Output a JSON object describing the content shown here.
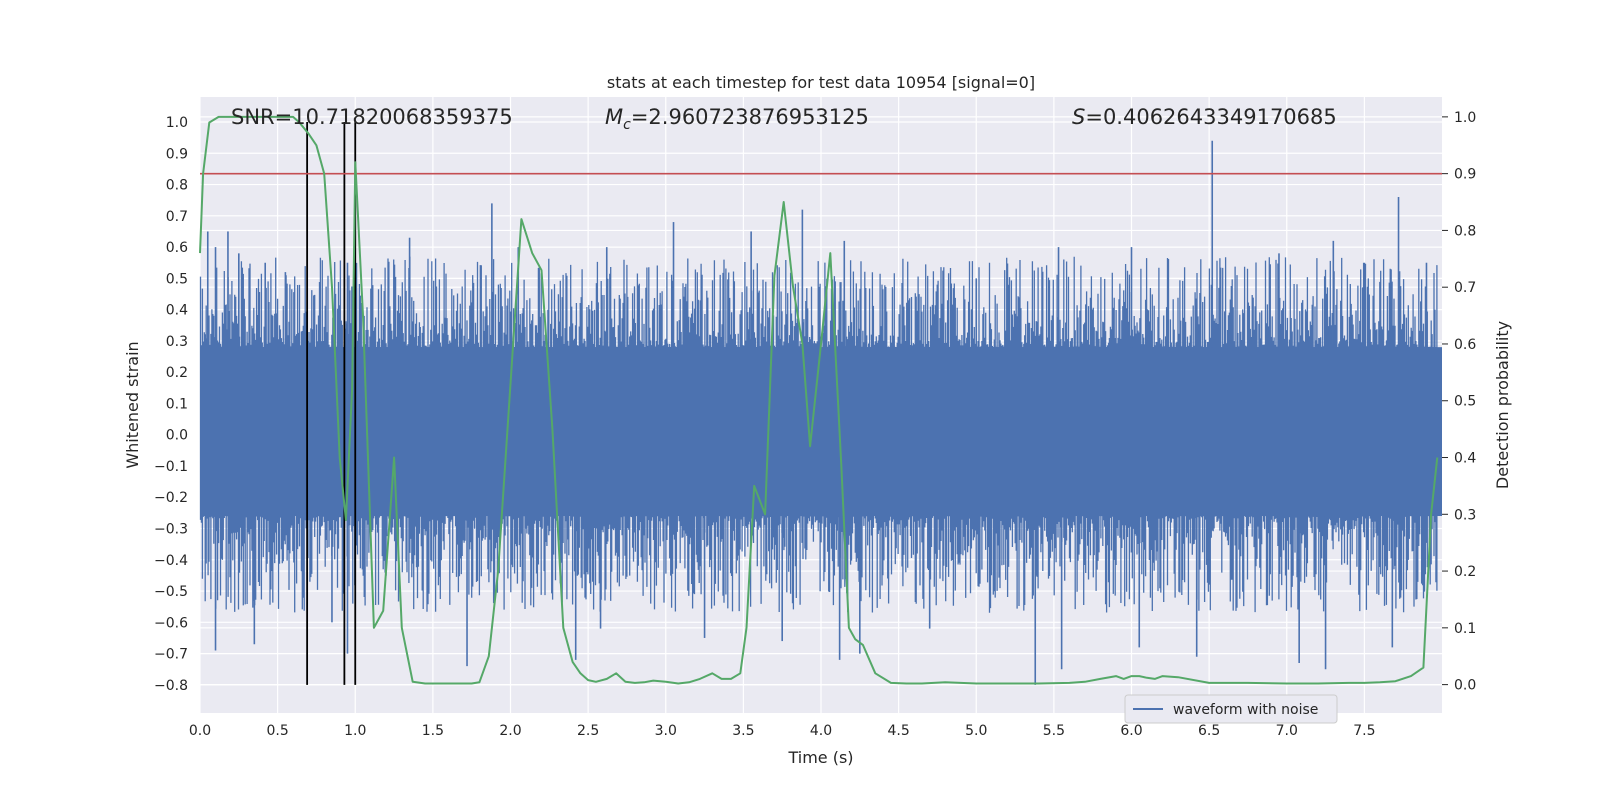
{
  "chart_data": {
    "type": "line",
    "title": "stats at each timestep for test data 10954 [signal=0]",
    "xlabel": "Time (s)",
    "ylabel": "Whitened strain",
    "y2label": "Detection probability",
    "xlim": [
      0.0,
      8.0
    ],
    "ylim": [
      -0.89,
      1.08
    ],
    "y2lim": [
      -0.05,
      1.035
    ],
    "xticks": [
      "0.0",
      "0.5",
      "1.0",
      "1.5",
      "2.0",
      "2.5",
      "3.0",
      "3.5",
      "4.0",
      "4.5",
      "5.0",
      "5.5",
      "6.0",
      "6.5",
      "7.0",
      "7.5"
    ],
    "yticks": [
      "1.0",
      "0.9",
      "0.8",
      "0.7",
      "0.6",
      "0.5",
      "0.4",
      "0.3",
      "0.2",
      "0.1",
      "0.0",
      "−0.1",
      "−0.2",
      "−0.3",
      "−0.4",
      "−0.5",
      "−0.6",
      "−0.7",
      "−0.8"
    ],
    "y2ticks": [
      "1.0",
      "0.9",
      "0.8",
      "0.7",
      "0.6",
      "0.5",
      "0.4",
      "0.3",
      "0.2",
      "0.1",
      "0.0"
    ],
    "grid": true,
    "annotations": {
      "snr": "SNR=10.71820068359375",
      "mc_symbol": "M",
      "mc_sub": "c",
      "mc_value": "=2.960723876953125",
      "s_symbol": "S",
      "s_value": "=0.4062643349170685"
    },
    "legend": {
      "placement": "lower-right",
      "entries": [
        "waveform with noise"
      ]
    },
    "threshold": {
      "axis": "right",
      "value": 0.9,
      "color": "#c44e52"
    },
    "vlines": {
      "x": [
        0.69,
        0.93,
        1.0
      ],
      "ymin": -0.8,
      "ymax": 1.0,
      "color": "#000000"
    },
    "series": [
      {
        "name": "waveform with noise",
        "axis": "left",
        "color": "#4c72b0",
        "band": {
          "core_high": 0.28,
          "core_low": -0.26,
          "typical_peak": 0.45,
          "typical_trough": -0.45
        },
        "spikes_up": [
          [
            0.05,
            0.65
          ],
          [
            0.1,
            0.6
          ],
          [
            0.18,
            0.65
          ],
          [
            0.25,
            0.58
          ],
          [
            0.42,
            0.55
          ],
          [
            0.55,
            0.52
          ],
          [
            0.95,
            0.55
          ],
          [
            1.0,
            0.45
          ],
          [
            1.35,
            0.63
          ],
          [
            1.88,
            0.74
          ],
          [
            2.05,
            0.6
          ],
          [
            2.62,
            0.6
          ],
          [
            3.05,
            0.68
          ],
          [
            3.55,
            0.65
          ],
          [
            3.88,
            0.72
          ],
          [
            4.15,
            0.62
          ],
          [
            5.0,
            0.5
          ],
          [
            5.53,
            0.6
          ],
          [
            6.0,
            0.6
          ],
          [
            6.52,
            0.94
          ],
          [
            6.95,
            0.58
          ],
          [
            7.3,
            0.62
          ],
          [
            7.72,
            0.76
          ],
          [
            7.9,
            0.55
          ]
        ],
        "spikes_down": [
          [
            0.1,
            -0.69
          ],
          [
            0.35,
            -0.67
          ],
          [
            0.85,
            -0.6
          ],
          [
            0.95,
            -0.7
          ],
          [
            1.72,
            -0.74
          ],
          [
            2.42,
            -0.72
          ],
          [
            2.58,
            -0.62
          ],
          [
            3.25,
            -0.65
          ],
          [
            3.75,
            -0.66
          ],
          [
            4.12,
            -0.72
          ],
          [
            4.25,
            -0.7
          ],
          [
            4.7,
            -0.62
          ],
          [
            5.38,
            -0.8
          ],
          [
            5.55,
            -0.75
          ],
          [
            6.05,
            -0.68
          ],
          [
            6.42,
            -0.71
          ],
          [
            7.08,
            -0.73
          ],
          [
            7.25,
            -0.75
          ],
          [
            7.68,
            -0.68
          ]
        ]
      },
      {
        "name": "detection probability",
        "axis": "right",
        "color": "#55a868",
        "x": [
          0.0,
          0.02,
          0.06,
          0.12,
          0.2,
          0.3,
          0.4,
          0.5,
          0.6,
          0.64,
          0.7,
          0.75,
          0.8,
          0.85,
          0.9,
          0.94,
          0.98,
          1.0,
          1.05,
          1.12,
          1.18,
          1.25,
          1.3,
          1.37,
          1.45,
          1.55,
          1.65,
          1.75,
          1.8,
          1.86,
          1.92,
          2.0,
          2.07,
          2.14,
          2.2,
          2.27,
          2.34,
          2.4,
          2.45,
          2.5,
          2.55,
          2.62,
          2.68,
          2.74,
          2.8,
          2.86,
          2.92,
          3.0,
          3.08,
          3.15,
          3.22,
          3.3,
          3.36,
          3.42,
          3.48,
          3.52,
          3.57,
          3.64,
          3.7,
          3.76,
          3.82,
          3.88,
          3.93,
          4.0,
          4.06,
          4.13,
          4.18,
          4.22,
          4.27,
          4.35,
          4.45,
          4.55,
          4.65,
          4.8,
          5.0,
          5.2,
          5.4,
          5.6,
          5.7,
          5.8,
          5.9,
          5.95,
          6.0,
          6.05,
          6.1,
          6.15,
          6.2,
          6.3,
          6.5,
          6.75,
          7.0,
          7.2,
          7.4,
          7.5,
          7.6,
          7.7,
          7.8,
          7.88,
          7.93,
          7.97
        ],
        "y": [
          0.76,
          0.9,
          0.99,
          1.0,
          1.0,
          1.0,
          1.0,
          1.0,
          1.0,
          0.99,
          0.97,
          0.95,
          0.9,
          0.7,
          0.4,
          0.29,
          0.52,
          0.92,
          0.65,
          0.1,
          0.13,
          0.4,
          0.1,
          0.005,
          0.002,
          0.002,
          0.002,
          0.002,
          0.004,
          0.05,
          0.2,
          0.53,
          0.82,
          0.76,
          0.73,
          0.45,
          0.1,
          0.04,
          0.02,
          0.008,
          0.005,
          0.01,
          0.02,
          0.005,
          0.003,
          0.004,
          0.007,
          0.005,
          0.002,
          0.004,
          0.01,
          0.02,
          0.01,
          0.01,
          0.02,
          0.1,
          0.35,
          0.3,
          0.72,
          0.85,
          0.7,
          0.6,
          0.42,
          0.6,
          0.76,
          0.39,
          0.1,
          0.08,
          0.07,
          0.02,
          0.003,
          0.002,
          0.002,
          0.004,
          0.002,
          0.002,
          0.002,
          0.003,
          0.005,
          0.01,
          0.015,
          0.01,
          0.015,
          0.015,
          0.012,
          0.01,
          0.015,
          0.013,
          0.003,
          0.003,
          0.002,
          0.002,
          0.003,
          0.003,
          0.004,
          0.006,
          0.015,
          0.03,
          0.3,
          0.4
        ]
      }
    ]
  }
}
